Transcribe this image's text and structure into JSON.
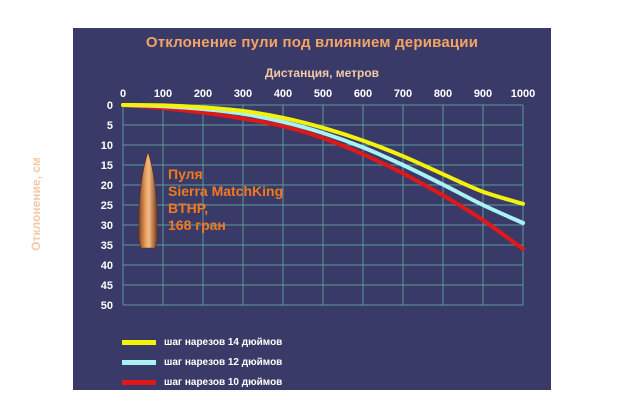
{
  "colors": {
    "background": "#3a3a68",
    "grid": "#5a9a9c",
    "title": "#f5a466",
    "axis_label": "#f5c9a8",
    "bullet_text": "#f07a1c",
    "bullet": "#c8743a"
  },
  "bullet": {
    "lines": [
      "Пуля",
      "Sierra MatchKing",
      "BTHP,",
      "168 гран"
    ],
    "icon": "bullet-icon"
  },
  "chart_data": {
    "type": "line",
    "title": "Отклонение пули под влиянием деривации",
    "xlabel": "Дистанция, метров",
    "ylabel": "Отклонение, см",
    "x_axis_position": "top",
    "y_axis_inverted": true,
    "xlim": [
      0,
      1000
    ],
    "ylim": [
      0,
      50
    ],
    "x_ticks": [
      0,
      100,
      200,
      300,
      400,
      500,
      600,
      700,
      800,
      900,
      1000
    ],
    "y_ticks": [
      0,
      5,
      10,
      15,
      20,
      25,
      30,
      35,
      40,
      45,
      50
    ],
    "grid": true,
    "legend_position": "bottom-left",
    "x": [
      0,
      100,
      200,
      300,
      400,
      500,
      600,
      700,
      800,
      900,
      1000
    ],
    "series": [
      {
        "name": "шаг нарезов 14 дюймов",
        "color": "#f4f20a",
        "values": [
          0,
          0.1,
          0.6,
          1.5,
          3.2,
          5.7,
          8.9,
          12.8,
          17.3,
          21.7,
          24.7
        ]
      },
      {
        "name": "шаг нарезов 12 дюймов",
        "color": "#a8f2f4",
        "values": [
          0,
          0.3,
          1.0,
          2.2,
          4.2,
          7.0,
          10.6,
          15.0,
          19.9,
          25.0,
          29.5
        ]
      },
      {
        "name": "шаг нарезов 10 дюймов",
        "color": "#e01818",
        "values": [
          0,
          0.8,
          1.9,
          3.4,
          5.3,
          8.3,
          12.3,
          17.1,
          22.6,
          28.8,
          36.0
        ]
      }
    ]
  }
}
